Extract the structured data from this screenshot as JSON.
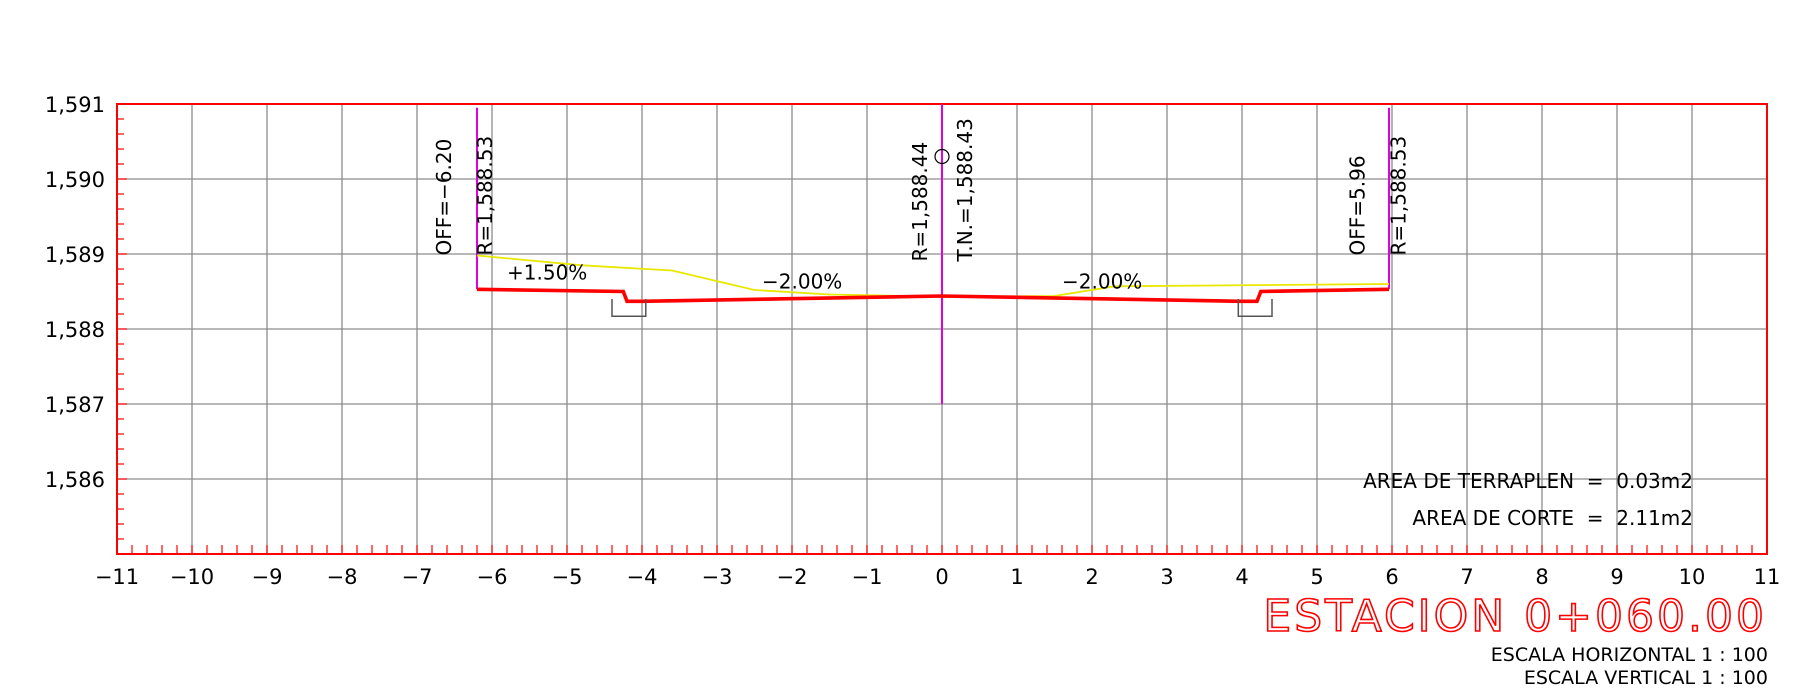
{
  "chart_data": {
    "type": "line",
    "title": "ESTACION 0+060.00",
    "xlim": [
      -11,
      11
    ],
    "ylim": [
      1585,
      1591
    ],
    "x_ticks": [
      "−11",
      "−10",
      "−9",
      "−8",
      "−7",
      "−6",
      "−5",
      "−4",
      "−3",
      "−2",
      "−1",
      "0",
      "1",
      "2",
      "3",
      "4",
      "5",
      "6",
      "7",
      "8",
      "9",
      "10",
      "11"
    ],
    "y_ticks": [
      {
        "value": 1591,
        "label": "1,591"
      },
      {
        "value": 1590,
        "label": "1,590"
      },
      {
        "value": 1589,
        "label": "1,589"
      },
      {
        "value": 1588,
        "label": "1,588"
      },
      {
        "value": 1587,
        "label": "1,587"
      },
      {
        "value": 1586,
        "label": "1,586"
      }
    ],
    "grid": true,
    "series": [
      {
        "role": "existing-ground",
        "color": "#e8e800",
        "x": [
          -6.2,
          -4.8,
          -3.6,
          -2.5,
          -1.5,
          0,
          1.5,
          2.3,
          5.96
        ],
        "y": [
          1588.98,
          1588.85,
          1588.78,
          1588.52,
          1588.46,
          1588.43,
          1588.44,
          1588.57,
          1588.6
        ]
      },
      {
        "role": "design-section",
        "color": "#ff0000",
        "x": [
          -6.2,
          -4.25,
          -4.2,
          -4.0,
          0,
          4.0,
          4.2,
          4.25,
          5.96
        ],
        "y": [
          1588.53,
          1588.5,
          1588.37,
          1588.37,
          1588.44,
          1588.37,
          1588.37,
          1588.5,
          1588.53
        ]
      },
      {
        "role": "left-ditch",
        "color": "#555555",
        "x": [
          -4.4,
          -4.4,
          -3.95,
          -3.95
        ],
        "y": [
          1588.4,
          1588.17,
          1588.17,
          1588.4
        ]
      },
      {
        "role": "right-ditch",
        "color": "#555555",
        "x": [
          3.95,
          3.95,
          4.4,
          4.4
        ],
        "y": [
          1588.4,
          1588.17,
          1588.17,
          1588.4
        ]
      }
    ],
    "vertical_markers": [
      {
        "x": -6.2,
        "y_from": 1588.53,
        "y_to": 1590.95,
        "color": "#e000e0"
      },
      {
        "x": 0,
        "y_from": 1587.0,
        "y_to": 1591.0,
        "color": "#e000e0"
      },
      {
        "x": 5.96,
        "y_from": 1588.53,
        "y_to": 1590.95,
        "color": "#e000e0"
      }
    ],
    "annotations": [
      {
        "text": "OFF=−6.20",
        "x": -6.55,
        "y": 1588.98,
        "vertical": true
      },
      {
        "text": "R=1,588.53",
        "x": -6.0,
        "y": 1588.98,
        "vertical": true
      },
      {
        "text": "R=1,588.44",
        "x": -0.2,
        "y": 1588.9,
        "vertical": true
      },
      {
        "text": "T.N.=1,588.43",
        "x": 0.4,
        "y": 1588.9,
        "vertical": true
      },
      {
        "text": "OFF=5.96",
        "x": 5.63,
        "y": 1588.98,
        "vertical": true
      },
      {
        "text": "R=1,588.53",
        "x": 6.18,
        "y": 1588.98,
        "vertical": true
      },
      {
        "text": "+1.50%",
        "x": -5.8,
        "y": 1588.66,
        "vertical": false
      },
      {
        "text": "−2.00%",
        "x": -2.4,
        "y": 1588.54,
        "vertical": false
      },
      {
        "text": "−2.00%",
        "x": 1.6,
        "y": 1588.54,
        "vertical": false
      }
    ]
  },
  "area": {
    "fill": "AREA DE TERRAPLEN  =  0.03m2",
    "cut": "AREA DE CORTE  =  2.11m2"
  },
  "station": "ESTACION 0+060.00",
  "scales": {
    "horizontal": "ESCALA HORIZONTAL 1 : 100",
    "vertical": "ESCALA VERTICAL 1 : 100"
  },
  "colors": {
    "frame": "#ff0000",
    "grid": "#8c8c8c",
    "accent": "#ff0000"
  }
}
